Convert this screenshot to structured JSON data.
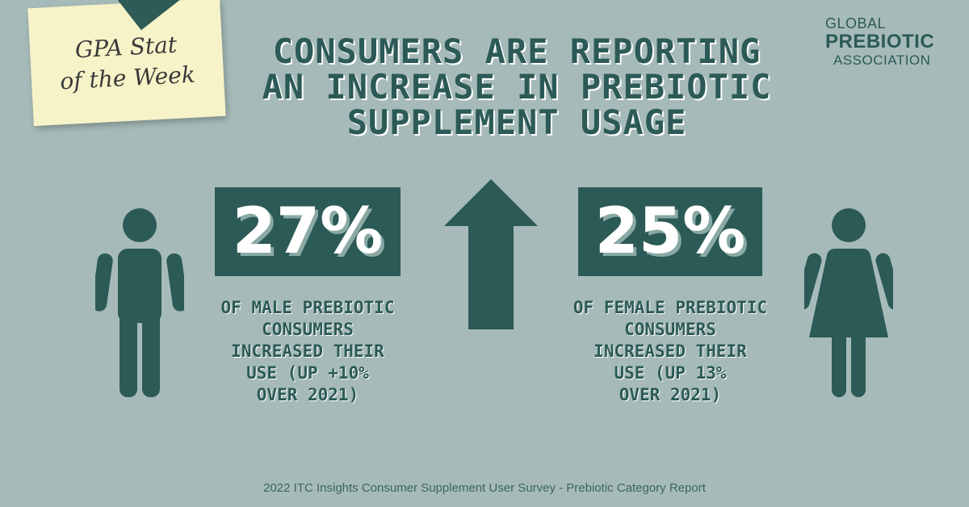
{
  "sticky_note": {
    "line1": "GPA Stat",
    "line2": "of the Week"
  },
  "headline": {
    "line1": "Consumers are reporting",
    "line2": "an increase in prebiotic",
    "line3": "supplement usage"
  },
  "logo": {
    "line1": "GLOBAL",
    "line2": "PREBIOTIC",
    "line3": "ASSOCIATION"
  },
  "stats": {
    "male": {
      "value": "27%",
      "caption_line1": "of male prebiotic",
      "caption_line2": "consumers",
      "caption_line3": "increased their",
      "caption_line4": "use (up +10%",
      "caption_line5": "over 2021)"
    },
    "female": {
      "value": "25%",
      "caption_line1": "of female prebiotic",
      "caption_line2": "consumers",
      "caption_line3": "increased their",
      "caption_line4": "use (up 13%",
      "caption_line5": "over 2021)"
    }
  },
  "footer": "2022 ITC Insights Consumer Supplement User Survey - Prebiotic Category Report",
  "colors": {
    "background": "#a6bbb9",
    "primary": "#2c5a56",
    "note": "#f7f3c8",
    "white": "#ffffff"
  },
  "icons": {
    "male": "male-figure-icon",
    "female": "female-figure-icon",
    "arrow": "up-arrow-icon"
  }
}
